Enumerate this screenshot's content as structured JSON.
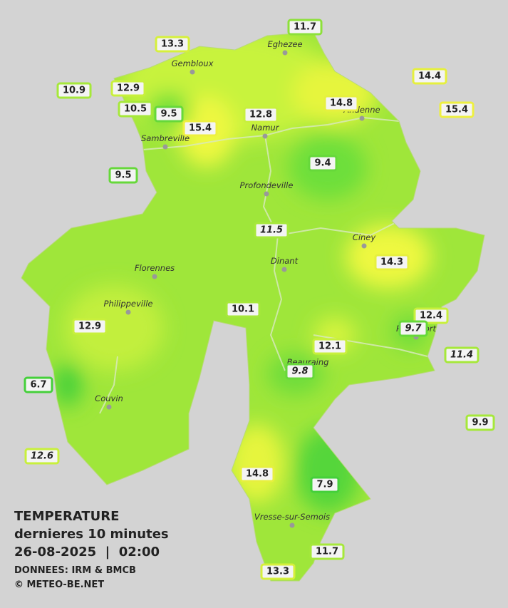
{
  "stations": [
    11.7,
    13.3,
    14.4,
    10.9,
    12.9,
    14.8,
    10.5,
    9.5,
    12.8,
    15.4,
    15.4,
    9.4,
    9.5,
    11.5,
    14.3,
    10.1,
    12.4,
    12.9,
    9.7,
    12.1,
    11.4,
    9.8,
    6.7,
    9.9,
    12.6,
    14.8,
    7.9,
    11.7,
    13.3
  ],
  "places": [
    "Eghezee",
    "Gembloux",
    "Andenne",
    "Namur",
    "Sambreville",
    "Profondeville",
    "Ciney",
    "Dinant",
    "Florennes",
    "Philippeville",
    "Rochefort",
    "Beauraing",
    "Couvin",
    "Vresse-sur-Semois"
  ],
  "legend": {
    "title": "TEMPERATURE",
    "subtitle": "dernieres 10 minutes",
    "datetime": "26-08-2025  |  02:00",
    "source": "DONNEES: IRM & BMCB",
    "copyright": "© METEO-BE.NET"
  }
}
